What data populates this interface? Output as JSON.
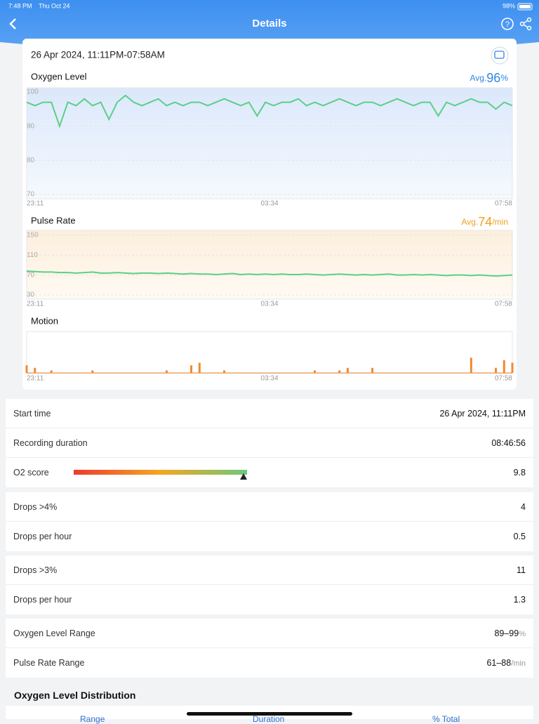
{
  "status_bar": {
    "time": "7:48 PM",
    "date": "Thu Oct 24",
    "battery": "98%"
  },
  "header": {
    "title": "Details"
  },
  "card": {
    "date_range": "26 Apr 2024, 11:11PM-07:58AM"
  },
  "chart_data": [
    {
      "type": "line",
      "title": "Oxygen Level",
      "avg_label": "Avg.",
      "avg_value": 96,
      "avg_unit": "%",
      "avg_color": "#2f86e8",
      "color": "#5ccf85",
      "ylim": [
        70,
        100
      ],
      "yticks": [
        100,
        90,
        80,
        70
      ],
      "x_labels": [
        "23:11",
        "03:34",
        "07:58"
      ],
      "values": [
        97,
        96,
        97,
        97,
        90,
        97,
        96,
        98,
        96,
        97,
        92,
        97,
        99,
        97,
        96,
        97,
        98,
        96,
        97,
        96,
        97,
        97,
        96,
        97,
        98,
        97,
        96,
        97,
        93,
        97,
        96,
        97,
        97,
        98,
        96,
        97,
        96,
        97,
        98,
        97,
        96,
        97,
        97,
        96,
        97,
        98,
        97,
        96,
        97,
        97,
        93,
        97,
        96,
        97,
        98,
        97,
        97,
        95,
        97,
        96
      ]
    },
    {
      "type": "line",
      "title": "Pulse Rate",
      "avg_label": "Avg.",
      "avg_value": 74,
      "avg_unit": "/min",
      "avg_color": "#f0a020",
      "color": "#5ccf85",
      "ylim": [
        30,
        150
      ],
      "yticks": [
        150,
        110,
        70,
        30
      ],
      "x_labels": [
        "23:11",
        "03:34",
        "07:58"
      ],
      "values": [
        78,
        77,
        76,
        76,
        75,
        75,
        74,
        75,
        76,
        74,
        74,
        75,
        74,
        73,
        74,
        74,
        73,
        74,
        73,
        72,
        73,
        72,
        72,
        71,
        72,
        73,
        71,
        72,
        71,
        72,
        71,
        72,
        71,
        71,
        72,
        71,
        70,
        71,
        72,
        71,
        70,
        71,
        70,
        71,
        72,
        70,
        70,
        71,
        70,
        71,
        70,
        69,
        70,
        70,
        69,
        70,
        69,
        68,
        69,
        70
      ]
    },
    {
      "type": "bar",
      "title": "Motion",
      "color": "#f08a30",
      "ylim": [
        0,
        10
      ],
      "x_labels": [
        "23:11",
        "03:34",
        "07:58"
      ],
      "values": [
        3,
        2,
        0,
        1,
        0,
        0,
        0,
        0,
        1,
        0,
        0,
        0,
        0,
        0,
        0,
        0,
        0,
        1,
        0,
        0,
        3,
        4,
        0,
        0,
        1,
        0,
        0,
        0,
        0,
        0,
        0,
        0,
        0,
        0,
        0,
        1,
        0,
        0,
        1,
        2,
        0,
        0,
        2,
        0,
        0,
        0,
        0,
        0,
        0,
        0,
        0,
        0,
        0,
        0,
        6,
        0,
        0,
        2,
        5,
        4
      ]
    }
  ],
  "summary": {
    "start_label": "Start time",
    "start_value": "26 Apr 2024, 11:11PM",
    "duration_label": "Recording duration",
    "duration_value": "08:46:56",
    "score_label": "O2 score",
    "score_value": 9.8,
    "score_scale": [
      0,
      10
    ]
  },
  "drops4": {
    "label": "Drops >4%",
    "value": 4,
    "per_hour_label": "Drops per hour",
    "per_hour": 0.5
  },
  "drops3": {
    "label": "Drops >3%",
    "value": 11,
    "per_hour_label": "Drops per hour",
    "per_hour": 1.3
  },
  "ranges": {
    "oxygen_label": "Oxygen Level Range",
    "oxygen_value": "89–99",
    "oxygen_unit": "%",
    "pulse_label": "Pulse Rate Range",
    "pulse_value": "61–88",
    "pulse_unit": "/min"
  },
  "distribution": {
    "title": "Oxygen Level Distribution",
    "columns": [
      "Range",
      "Duration",
      "% Total"
    ]
  }
}
